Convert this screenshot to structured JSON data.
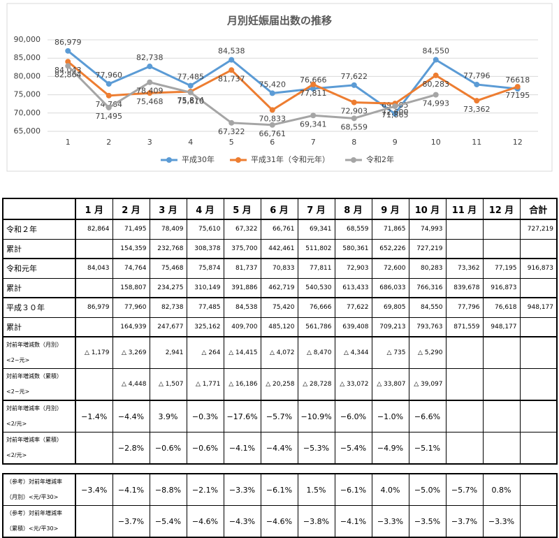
{
  "chart_data": {
    "type": "line",
    "title": "月別妊娠届出数の推移",
    "categories": [
      "1",
      "2",
      "3",
      "4",
      "5",
      "6",
      "7",
      "8",
      "9",
      "10",
      "11",
      "12"
    ],
    "ylim": [
      65000,
      90000
    ],
    "yticks": [
      {
        "value": 65000,
        "label": "65,000"
      },
      {
        "value": 70000,
        "label": "70,000"
      },
      {
        "value": 75000,
        "label": "75,000"
      },
      {
        "value": 80000,
        "label": "80,000"
      },
      {
        "value": 85000,
        "label": "85,000"
      },
      {
        "value": 90000,
        "label": "90,000"
      }
    ],
    "grid": true,
    "legend": "bottom",
    "series": [
      {
        "name": "平成30年",
        "color": "#5b9bd5",
        "values": [
          86979,
          77960,
          82738,
          77485,
          84538,
          75420,
          76666,
          77622,
          69805,
          84550,
          77796,
          76618
        ],
        "value_labels": [
          "86,979",
          "77,960",
          "82,738",
          "77,485",
          "84,538",
          "75,420",
          "76,666",
          "77,622",
          "69,805",
          "84,550",
          "77,796",
          "76618"
        ]
      },
      {
        "name": "平成31年（令和元年）",
        "color": "#ed7d31",
        "values": [
          84043,
          74764,
          75468,
          75874,
          81737,
          70833,
          77811,
          72903,
          72600,
          80283,
          73362,
          77195
        ],
        "value_labels": [
          "84,043",
          "74,764",
          "75,468",
          "75,874",
          "81,737",
          "70,833",
          "77,811",
          "72,903",
          "72,600",
          "80,283",
          "73,362",
          "77195"
        ]
      },
      {
        "name": "令和2年",
        "color": "#a5a5a5",
        "values": [
          82864,
          71495,
          78409,
          75610,
          67322,
          66761,
          69341,
          68559,
          71865,
          74993,
          null,
          null
        ],
        "value_labels": [
          "82,864",
          "71,495",
          "78,409",
          "75,610",
          "67,322",
          "66,761",
          "69,341",
          "68,559",
          "71,865",
          "74,993",
          null,
          null
        ]
      }
    ]
  },
  "table": {
    "columns": [
      "1 月",
      "2 月",
      "3 月",
      "4 月",
      "5 月",
      "6 月",
      "7 月",
      "8 月",
      "9 月",
      "10 月",
      "11 月",
      "12 月",
      "合計"
    ],
    "rows": [
      {
        "label": [
          "令和２年"
        ],
        "cells": [
          "82,864",
          "71,495",
          "78,409",
          "75,610",
          "67,322",
          "66,761",
          "69,341",
          "68,559",
          "71,865",
          "74,993",
          null,
          null,
          "727,219"
        ]
      },
      {
        "label": [
          "累計"
        ],
        "cells": [
          null,
          "154,359",
          "232,768",
          "308,378",
          "375,700",
          "442,461",
          "511,802",
          "580,361",
          "652,226",
          "727,219",
          null,
          null,
          null
        ]
      },
      {
        "label": [
          "令和元年"
        ],
        "cells": [
          "84,043",
          "74,764",
          "75,468",
          "75,874",
          "81,737",
          "70,833",
          "77,811",
          "72,903",
          "72,600",
          "80,283",
          "73,362",
          "77,195",
          "916,873"
        ]
      },
      {
        "label": [
          "累計"
        ],
        "cells": [
          null,
          "158,807",
          "234,275",
          "310,149",
          "391,886",
          "462,719",
          "540,530",
          "613,433",
          "686,033",
          "766,316",
          "839,678",
          "916,873",
          null
        ]
      },
      {
        "label": [
          "平成３０年"
        ],
        "cells": [
          "86,979",
          "77,960",
          "82,738",
          "77,485",
          "84,538",
          "75,420",
          "76,666",
          "77,622",
          "69,805",
          "84,550",
          "77,796",
          "76,618",
          "948,177"
        ]
      },
      {
        "label": [
          "累計"
        ],
        "cells": [
          null,
          "164,939",
          "247,677",
          "325,162",
          "409,700",
          "485,120",
          "561,786",
          "639,408",
          "709,213",
          "793,763",
          "871,559",
          "948,177",
          null
        ]
      },
      {
        "label": [
          "対前年増減数（月別）",
          "<2−元>"
        ],
        "cells": [
          "△ 1,179",
          "△ 3,269",
          "2,941",
          "△ 264",
          "△ 14,415",
          "△ 4,072",
          "△ 8,470",
          "△ 4,344",
          "△ 735",
          "△ 5,290",
          null,
          null,
          null
        ]
      },
      {
        "label": [
          "対前年増減数（累積）",
          "<2−元>"
        ],
        "cells": [
          null,
          "△ 4,448",
          "△ 1,507",
          "△ 1,771",
          "△ 16,186",
          "△ 20,258",
          "△ 28,728",
          "△ 33,072",
          "△ 33,807",
          "△ 39,097",
          null,
          null,
          null
        ]
      },
      {
        "label": [
          "対前年増減率（月別）",
          "<2/元>"
        ],
        "cells": [
          "−1.4%",
          "−4.4%",
          "3.9%",
          "−0.3%",
          "−17.6%",
          "−5.7%",
          "−10.9%",
          "−6.0%",
          "−1.0%",
          "−6.6%",
          null,
          null,
          null
        ]
      },
      {
        "label": [
          "対前年増減率（累積）",
          "<2/元>"
        ],
        "cells": [
          null,
          "−2.8%",
          "−0.6%",
          "−0.6%",
          "−4.1%",
          "−4.4%",
          "−5.3%",
          "−5.4%",
          "−4.9%",
          "−5.1%",
          null,
          null,
          null
        ]
      }
    ],
    "reference_rows": [
      {
        "label": [
          "（参考）対前年増減率",
          "（月別）<元/平30>"
        ],
        "cells": [
          "−3.4%",
          "−4.1%",
          "−8.8%",
          "−2.1%",
          "−3.3%",
          "−6.1%",
          "1.5%",
          "−6.1%",
          "4.0%",
          "−5.0%",
          "−5.7%",
          "0.8%",
          null
        ]
      },
      {
        "label": [
          "（参考）対前年増減率",
          "（累積）<元/平30>"
        ],
        "cells": [
          null,
          "−3.7%",
          "−5.4%",
          "−4.6%",
          "−4.3%",
          "−4.6%",
          "−3.8%",
          "−4.1%",
          "−3.3%",
          "−3.5%",
          "−3.7%",
          "−3.3%",
          null
        ]
      }
    ]
  }
}
